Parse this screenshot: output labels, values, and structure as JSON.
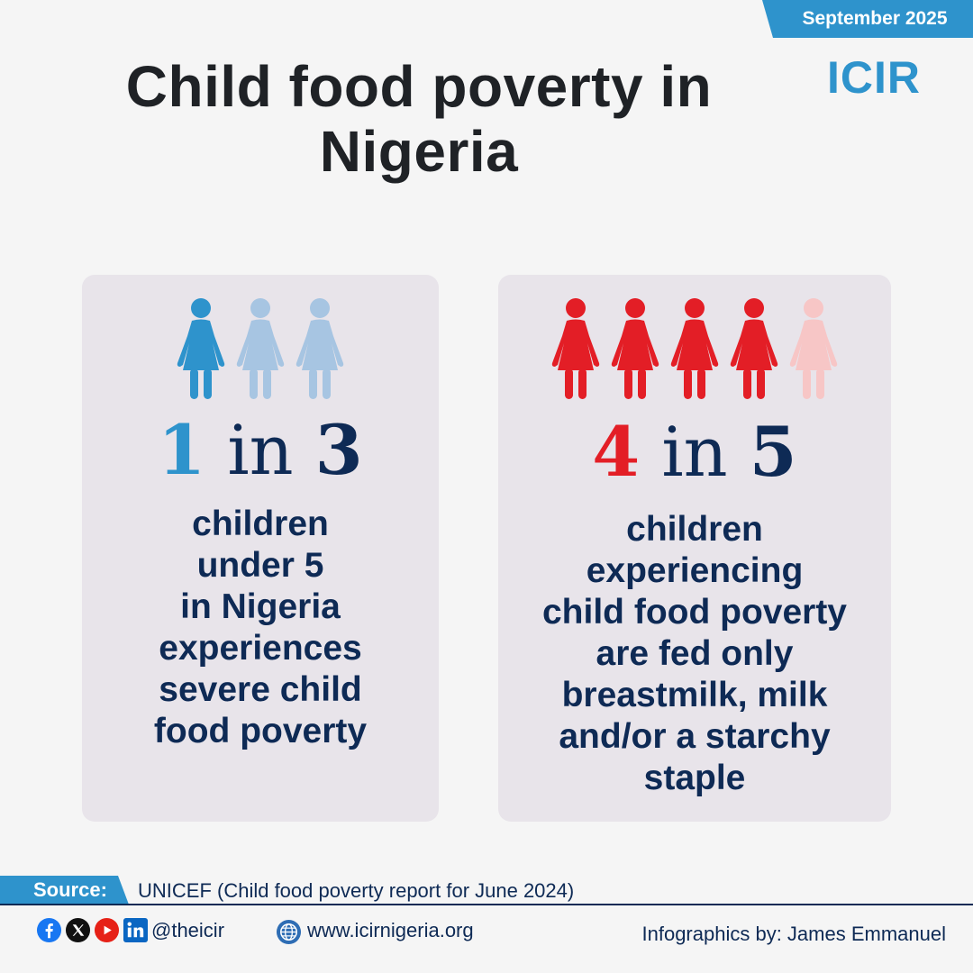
{
  "header": {
    "date": "September 2025",
    "logo_text": "ICIR",
    "title_line1": "Child food poverty in",
    "title_line2": "Nigeria"
  },
  "colors": {
    "accent_blue": "#2e93cc",
    "accent_red": "#e31e26",
    "navy": "#0e2a55",
    "light_blue": "#a7c5e2",
    "light_red": "#f7c6c6",
    "card_bg": "#e8e4ea"
  },
  "stats": [
    {
      "numerator": "1",
      "word": "in",
      "denominator": "3",
      "filled": 1,
      "total": 3,
      "figure_icon": "child-figure-icon",
      "lines": [
        "children",
        "under 5",
        "in Nigeria",
        "experiences",
        "severe child",
        "food poverty"
      ]
    },
    {
      "numerator": "4",
      "word": "in",
      "denominator": "5",
      "filled": 4,
      "total": 5,
      "figure_icon": "child-figure-icon",
      "lines": [
        "children",
        "experiencing",
        "child food poverty",
        "are fed only",
        "breastmilk, milk",
        "and/or a starchy",
        "staple"
      ]
    }
  ],
  "footer": {
    "source_label": "Source:",
    "source_text": "UNICEF (Child food poverty report for June 2024)",
    "social_icons": [
      "facebook-icon",
      "x-icon",
      "youtube-icon",
      "linkedin-icon"
    ],
    "handle": "@theicir",
    "website": "www.icirnigeria.org",
    "credit": "Infographics by: James Emmanuel"
  }
}
